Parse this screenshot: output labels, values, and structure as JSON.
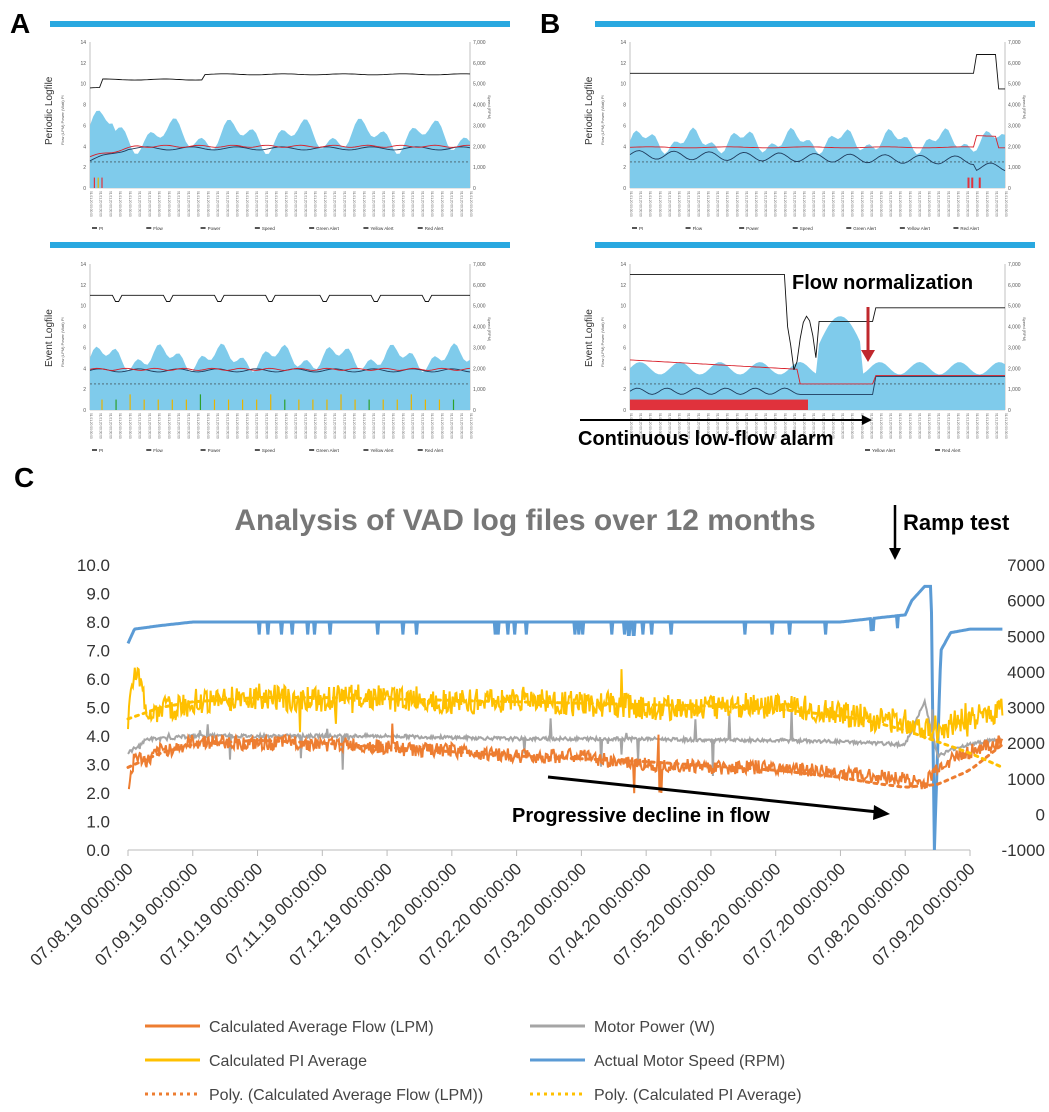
{
  "panels": {
    "a_label": "A",
    "b_label": "B",
    "c_label": "C"
  },
  "mini_charts": {
    "periodic_label": "Periodic Logfile",
    "event_label": "Event Logfile",
    "y_left_ticks": [
      "0",
      "2",
      "4",
      "6",
      "8",
      "10",
      "12",
      "14"
    ],
    "y_right_ticks": [
      "0",
      "1,000",
      "2,000",
      "3,000",
      "4,000",
      "5,000",
      "6,000",
      "7,000"
    ],
    "legend": [
      "PI",
      "Flow",
      "Power",
      "Speed",
      "Green Alert",
      "Yellow Alert",
      "Red Alert"
    ],
    "legend_b_event": [
      "Yellow Alert",
      "Red Alert"
    ],
    "colors": {
      "pi": "#7fcbeb",
      "flow": "#1f3b5c",
      "power": "#d9202a",
      "speed": "#111111",
      "green": "#2ca02c",
      "yellow": "#e8b400",
      "red": "#e0323c"
    }
  },
  "annotations": {
    "flow_normalization": "Flow normalization",
    "low_flow_alarm": "Continuous low-flow alarm",
    "ramp_test": "Ramp test",
    "progressive_decline": "Progressive decline in flow"
  },
  "chart_data": {
    "type": "line",
    "title": "Analysis of VAD log files over 12 months",
    "x_ticks": [
      "07.08.19 00:00:00",
      "07.09.19 00:00:00",
      "07.10.19 00:00:00",
      "07.11.19 00:00:00",
      "07.12.19 00:00:00",
      "07.01.20 00:00:00",
      "07.02.20 00:00:00",
      "07.03.20 00:00:00",
      "07.04.20 00:00:00",
      "07.05.20 00:00:00",
      "07.06.20 00:00:00",
      "07.07.20 00:00:00",
      "07.08.20 00:00:00",
      "07.09.20 00:00:00"
    ],
    "ylim_left": [
      0,
      10
    ],
    "ylim_right": [
      -1000,
      7000
    ],
    "y_left_ticks": [
      "0.0",
      "1.0",
      "2.0",
      "3.0",
      "4.0",
      "5.0",
      "6.0",
      "7.0",
      "8.0",
      "9.0",
      "10.0"
    ],
    "y_right_ticks": [
      "-1000",
      "0",
      "1000",
      "2000",
      "3000",
      "4000",
      "5000",
      "6000",
      "7000"
    ],
    "series": [
      {
        "name": "Calculated Average Flow (LPM)",
        "axis": "left",
        "color": "#ed7d31",
        "x": [
          0,
          0.1,
          0.3,
          0.5,
          0.8,
          1,
          1.5,
          2,
          2.5,
          3,
          3.5,
          4,
          4.5,
          5,
          5.5,
          6,
          6.5,
          7,
          7.5,
          8,
          8.5,
          9,
          9.5,
          10,
          10.5,
          11,
          11.5,
          12,
          12.3,
          12.5,
          12.8,
          13.2,
          13.5
        ],
        "y": [
          2.1,
          3.3,
          3.1,
          3.5,
          3.6,
          3.8,
          3.8,
          3.7,
          3.8,
          3.7,
          3.7,
          3.6,
          3.5,
          3.5,
          3.4,
          3.3,
          3.3,
          3.3,
          3.1,
          3.0,
          3.0,
          2.9,
          2.9,
          2.9,
          2.8,
          2.7,
          2.6,
          2.5,
          2.3,
          2.9,
          3.3,
          3.6,
          3.8
        ]
      },
      {
        "name": "Calculated PI Average",
        "axis": "left",
        "color": "#ffc000",
        "x": [
          0,
          0.1,
          0.3,
          0.5,
          0.8,
          1,
          1.5,
          2,
          2.5,
          3,
          3.5,
          4,
          4.5,
          5,
          5.5,
          6,
          6.5,
          7,
          7.5,
          8,
          8.5,
          9,
          9.5,
          10,
          10.5,
          11,
          11.5,
          12,
          12.3,
          12.5,
          12.8,
          13.2,
          13.5
        ],
        "y": [
          5.0,
          6.5,
          4.8,
          4.9,
          5.0,
          5.2,
          5.3,
          5.4,
          5.3,
          5.3,
          5.4,
          5.3,
          5.3,
          5.2,
          5.2,
          5.3,
          5.2,
          5.1,
          5.1,
          5.0,
          5.0,
          5.0,
          5.1,
          5.0,
          5.0,
          4.8,
          4.6,
          4.5,
          4.3,
          4.2,
          4.5,
          4.7,
          5.0
        ]
      },
      {
        "name": "Motor Power (W)",
        "axis": "left",
        "color": "#a5a5a5",
        "x": [
          0,
          0.3,
          0.5,
          1,
          2,
          3,
          4,
          5,
          6,
          7,
          8,
          9,
          10,
          11,
          11.5,
          12,
          12.3,
          12.5,
          12.8,
          13.2,
          13.5
        ],
        "y": [
          3.4,
          3.9,
          3.9,
          4.0,
          4.0,
          4.0,
          4.0,
          3.95,
          3.9,
          3.9,
          3.9,
          3.85,
          3.85,
          3.8,
          3.75,
          3.7,
          5.2,
          3.3,
          3.6,
          3.8,
          3.9
        ]
      },
      {
        "name": "Actual Motor Speed (RPM)",
        "axis": "right",
        "color": "#5b9bd5",
        "x": [
          0,
          0.1,
          0.5,
          1,
          2,
          3,
          4,
          5,
          6,
          7,
          8,
          9,
          10,
          11,
          12,
          12.1,
          12.3,
          12.4,
          12.45,
          12.55,
          12.7,
          13,
          13.3,
          13.5
        ],
        "y": [
          4800,
          5200,
          5300,
          5400,
          5400,
          5400,
          5400,
          5400,
          5400,
          5400,
          5400,
          5400,
          5400,
          5400,
          5600,
          6000,
          6400,
          6400,
          -1000,
          4600,
          5100,
          5200,
          5200,
          5200
        ]
      },
      {
        "name": "Poly. (Calculated Average Flow (LPM))",
        "axis": "left",
        "color": "#ed7d31",
        "dashed": true,
        "x": [
          0,
          0.5,
          1,
          2,
          3,
          4,
          5,
          6,
          7,
          8,
          9,
          10,
          11,
          11.5,
          12,
          12.5,
          13,
          13.5
        ],
        "y": [
          2.9,
          3.4,
          3.7,
          3.85,
          3.75,
          3.6,
          3.45,
          3.3,
          3.2,
          3.1,
          2.95,
          2.8,
          2.55,
          2.35,
          2.2,
          2.3,
          2.8,
          3.7
        ]
      },
      {
        "name": "Poly. (Calculated PI Average)",
        "axis": "left",
        "color": "#ffc000",
        "dashed": true,
        "x": [
          0,
          0.5,
          1,
          2,
          3,
          4,
          5,
          6,
          7,
          8,
          9,
          10,
          11,
          11.5,
          12,
          12.5,
          13,
          13.5
        ],
        "y": [
          4.6,
          5.0,
          5.2,
          5.35,
          5.35,
          5.3,
          5.25,
          5.2,
          5.15,
          5.1,
          5.05,
          4.95,
          4.7,
          4.5,
          4.2,
          3.8,
          3.4,
          2.9
        ]
      }
    ],
    "legend": [
      "Calculated Average Flow (LPM)",
      "Motor Power (W)",
      "Calculated PI Average",
      "Actual Motor Speed (RPM)",
      "Poly. (Calculated Average Flow (LPM))",
      "Poly. (Calculated PI Average)"
    ]
  }
}
